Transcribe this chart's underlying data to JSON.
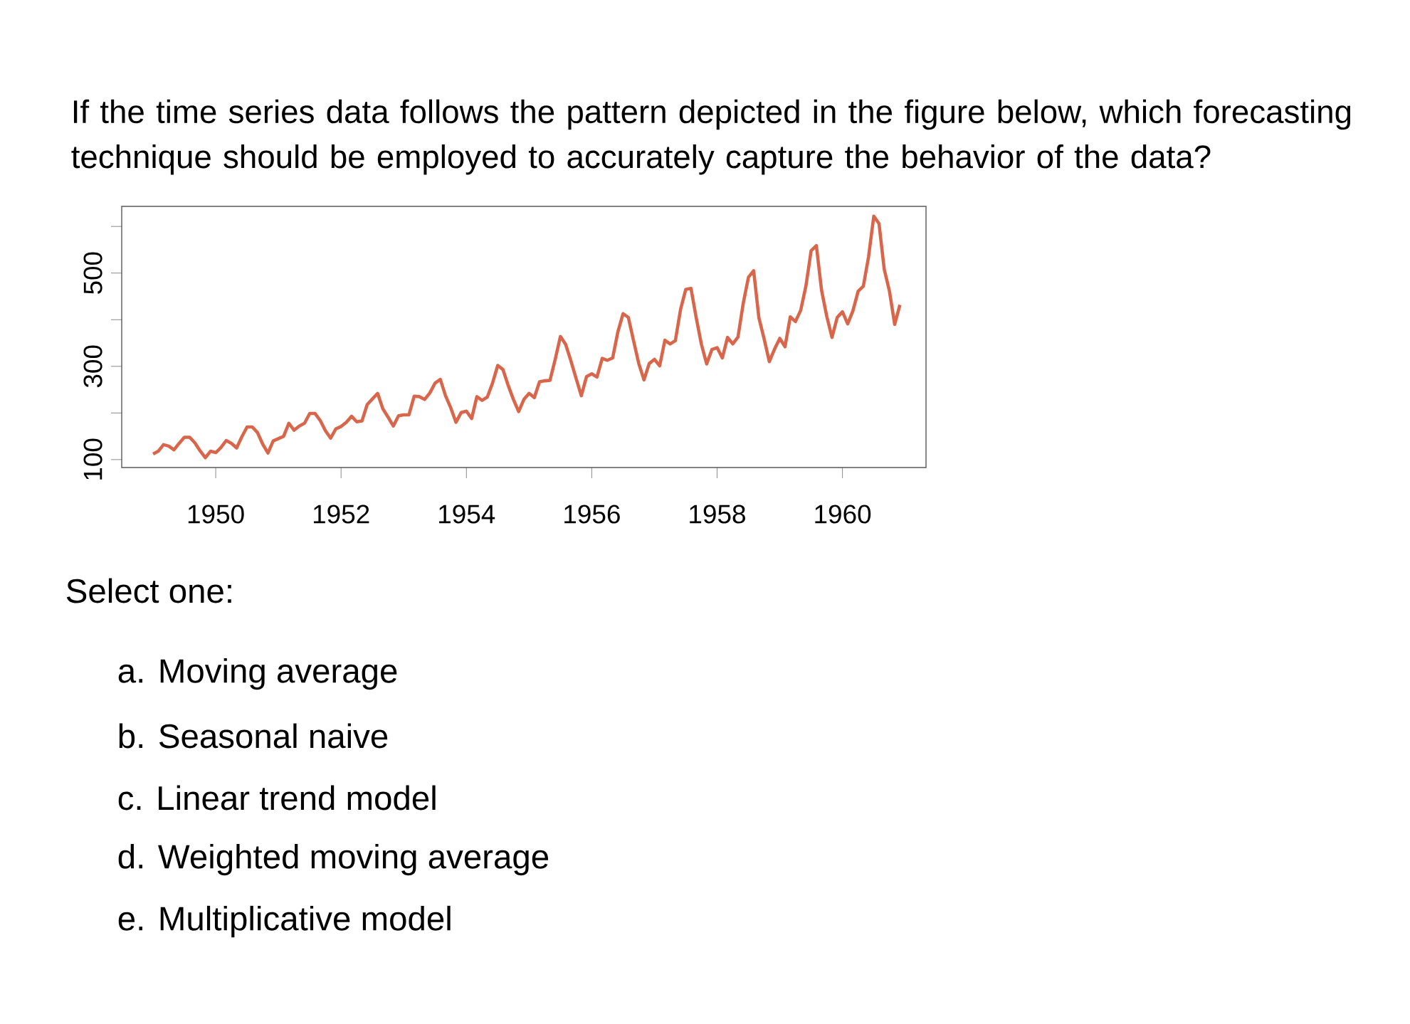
{
  "chart_data": {
    "type": "line",
    "title": "If the time series data follows the pattern depicted in the figure below, which forecasting technique should be employed to accurately capture the behavior of the data?",
    "x": [
      "1949-01",
      "1949-02",
      "1949-03",
      "1949-04",
      "1949-05",
      "1949-06",
      "1949-07",
      "1949-08",
      "1949-09",
      "1949-10",
      "1949-11",
      "1949-12",
      "1950-01",
      "1950-02",
      "1950-03",
      "1950-04",
      "1950-05",
      "1950-06",
      "1950-07",
      "1950-08",
      "1950-09",
      "1950-10",
      "1950-11",
      "1950-12",
      "1951-01",
      "1951-02",
      "1951-03",
      "1951-04",
      "1951-05",
      "1951-06",
      "1951-07",
      "1951-08",
      "1951-09",
      "1951-10",
      "1951-11",
      "1951-12",
      "1952-01",
      "1952-02",
      "1952-03",
      "1952-04",
      "1952-05",
      "1952-06",
      "1952-07",
      "1952-08",
      "1952-09",
      "1952-10",
      "1952-11",
      "1952-12",
      "1953-01",
      "1953-02",
      "1953-03",
      "1953-04",
      "1953-05",
      "1953-06",
      "1953-07",
      "1953-08",
      "1953-09",
      "1953-10",
      "1953-11",
      "1953-12",
      "1954-01",
      "1954-02",
      "1954-03",
      "1954-04",
      "1954-05",
      "1954-06",
      "1954-07",
      "1954-08",
      "1954-09",
      "1954-10",
      "1954-11",
      "1954-12",
      "1955-01",
      "1955-02",
      "1955-03",
      "1955-04",
      "1955-05",
      "1955-06",
      "1955-07",
      "1955-08",
      "1955-09",
      "1955-10",
      "1955-11",
      "1955-12",
      "1956-01",
      "1956-02",
      "1956-03",
      "1956-04",
      "1956-05",
      "1956-06",
      "1956-07",
      "1956-08",
      "1956-09",
      "1956-10",
      "1956-11",
      "1956-12",
      "1957-01",
      "1957-02",
      "1957-03",
      "1957-04",
      "1957-05",
      "1957-06",
      "1957-07",
      "1957-08",
      "1957-09",
      "1957-10",
      "1957-11",
      "1957-12",
      "1958-01",
      "1958-02",
      "1958-03",
      "1958-04",
      "1958-05",
      "1958-06",
      "1958-07",
      "1958-08",
      "1958-09",
      "1958-10",
      "1958-11",
      "1958-12",
      "1959-01",
      "1959-02",
      "1959-03",
      "1959-04",
      "1959-05",
      "1959-06",
      "1959-07",
      "1959-08",
      "1959-09",
      "1959-10",
      "1959-11",
      "1959-12",
      "1960-01",
      "1960-02",
      "1960-03",
      "1960-04",
      "1960-05",
      "1960-06",
      "1960-07",
      "1960-08",
      "1960-09",
      "1960-10",
      "1960-11",
      "1960-12"
    ],
    "values": [
      112,
      118,
      132,
      129,
      121,
      135,
      148,
      148,
      136,
      119,
      104,
      118,
      115,
      126,
      141,
      135,
      125,
      149,
      170,
      170,
      158,
      133,
      114,
      140,
      145,
      150,
      178,
      163,
      172,
      178,
      199,
      199,
      184,
      162,
      146,
      166,
      171,
      180,
      193,
      181,
      183,
      218,
      230,
      242,
      209,
      191,
      172,
      194,
      196,
      196,
      236,
      235,
      229,
      243,
      264,
      272,
      237,
      211,
      180,
      201,
      204,
      188,
      235,
      227,
      234,
      264,
      302,
      293,
      259,
      229,
      203,
      229,
      242,
      233,
      267,
      269,
      270,
      315,
      364,
      347,
      312,
      274,
      237,
      278,
      284,
      277,
      317,
      313,
      318,
      374,
      413,
      405,
      355,
      306,
      271,
      306,
      315,
      301,
      356,
      348,
      355,
      422,
      465,
      467,
      404,
      347,
      305,
      336,
      340,
      318,
      362,
      348,
      363,
      435,
      491,
      505,
      404,
      359,
      310,
      337,
      360,
      342,
      406,
      396,
      420,
      472,
      548,
      559,
      463,
      407,
      362,
      405,
      417,
      391,
      419,
      461,
      472,
      535,
      622,
      606,
      508,
      461,
      390,
      432
    ],
    "color": "#d9654a",
    "xlim": [
      "1948-07",
      "1961-05"
    ],
    "xticks": [
      "1950",
      "1952",
      "1954",
      "1956",
      "1958",
      "1960"
    ],
    "ylim": [
      83,
      643
    ],
    "yticks": [
      100,
      {
        "value": 200,
        "label": null
      },
      300,
      {
        "value": 400,
        "label": null
      },
      500,
      {
        "value": 600,
        "label": null
      }
    ],
    "annotations": [
      "Select one:",
      "a. Moving average",
      "b. Seasonal naive",
      "c. Linear trend model",
      "d. Weighted moving average",
      "e. Multiplicative model"
    ]
  }
}
